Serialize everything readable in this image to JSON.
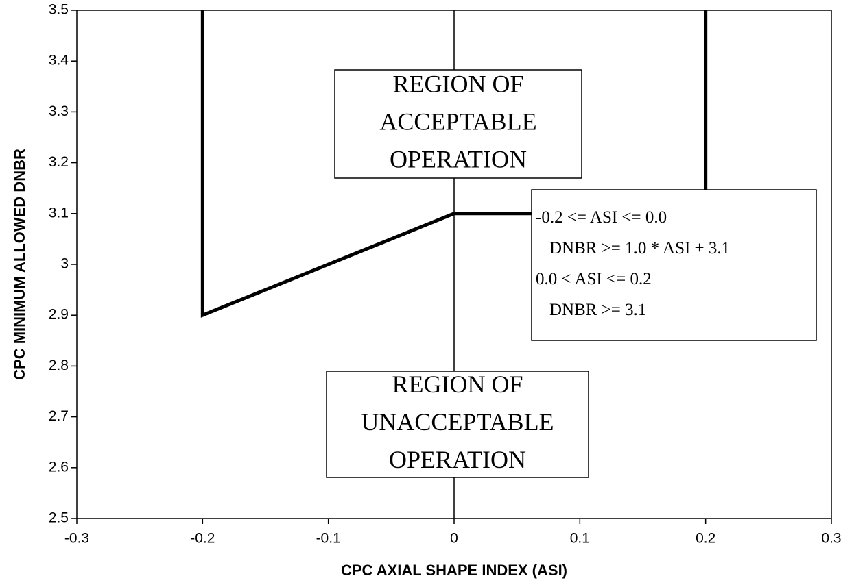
{
  "chart_data": {
    "type": "line",
    "x": [
      -0.2,
      -0.2,
      0,
      0.2,
      0.2
    ],
    "values": [
      3.5,
      2.9,
      3.1,
      3.1,
      3.5
    ],
    "color": "#000000",
    "xlabel": "CPC AXIAL SHAPE INDEX (ASI)",
    "ylabel": "CPC MINIMUM ALLOWED DNBR",
    "xlim": [
      -0.3,
      0.3
    ],
    "xticks": [
      -0.3,
      -0.2,
      -0.1,
      0,
      0.1,
      0.2,
      0.3
    ],
    "ylim": [
      2.5,
      3.5
    ],
    "yticks": [
      2.5,
      2.6,
      2.7,
      2.8,
      2.9,
      3,
      3.1,
      3.2,
      3.3,
      3.4,
      3.5
    ],
    "grid": false,
    "annotations": [
      {
        "lines": [
          "REGION OF",
          "ACCEPTABLE",
          "OPERATION"
        ]
      },
      {
        "lines": [
          "-0.2 <= ASI <= 0.0",
          "DNBR >= 1.0 * ASI + 3.1",
          "0.0 < ASI <= 0.2",
          "DNBR >= 3.1"
        ]
      },
      {
        "lines": [
          "REGION OF",
          "UNACCEPTABLE",
          "OPERATION"
        ]
      }
    ]
  }
}
